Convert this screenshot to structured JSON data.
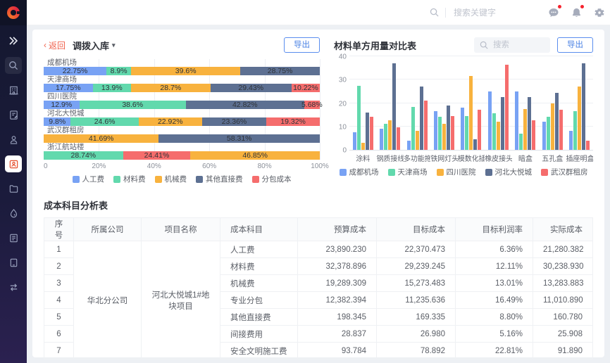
{
  "topbar": {
    "search_placeholder": "搜索关键字",
    "icons": [
      "message-icon",
      "bell-icon",
      "gear-icon"
    ],
    "badge_color": "#F5222D"
  },
  "sidebar": {
    "items": [
      {
        "icon": "expand-sidebar-icon",
        "style": "plain"
      },
      {
        "icon": "search-icon",
        "style": "boxed"
      },
      {
        "icon": "building-icon",
        "style": "plain"
      },
      {
        "icon": "document-edit-icon",
        "style": "plain"
      },
      {
        "icon": "user-certificate-icon",
        "style": "plain"
      },
      {
        "icon": "inventory-module-icon",
        "style": "active"
      },
      {
        "icon": "folder-icon",
        "style": "plain"
      },
      {
        "icon": "droplet-icon",
        "style": "plain"
      },
      {
        "icon": "invoice-icon",
        "style": "plain"
      },
      {
        "icon": "device-icon",
        "style": "plain"
      },
      {
        "icon": "transfer-icon",
        "style": "plain"
      }
    ],
    "active_color": "#E6502F"
  },
  "left_panel": {
    "back_label": "返回",
    "title": "调拨入库",
    "export_label": "导出",
    "chart_data": {
      "type": "bar",
      "orientation": "horizontal-stacked",
      "title": "调拨入库",
      "legend_position": "bottom",
      "grid": true,
      "xlim": [
        0,
        100
      ],
      "x_ticks": [
        "0",
        "20%",
        "40%",
        "60%",
        "80%",
        "100%"
      ],
      "legend": [
        {
          "name": "人工费",
          "color": "#78A2F4"
        },
        {
          "name": "材料费",
          "color": "#62D9AD"
        },
        {
          "name": "机械费",
          "color": "#F8B23E"
        },
        {
          "name": "其他直接费",
          "color": "#5D7092"
        },
        {
          "name": "分包成本",
          "color": "#F56D6D"
        }
      ],
      "rows": [
        {
          "category": "成都机场",
          "segments": [
            {
              "series": 0,
              "value": 22.75,
              "label": "22.75%"
            },
            {
              "series": 1,
              "value": 8.9,
              "label": "8.9%"
            },
            {
              "series": 2,
              "value": 39.6,
              "label": "39.6%"
            },
            {
              "series": 3,
              "value": 28.75,
              "label": "28.75%"
            }
          ]
        },
        {
          "category": "天津商场",
          "segments": [
            {
              "series": 0,
              "value": 17.75,
              "label": "17.75%"
            },
            {
              "series": 1,
              "value": 13.9,
              "label": "13.9%"
            },
            {
              "series": 2,
              "value": 28.7,
              "label": "28.7%"
            },
            {
              "series": 3,
              "value": 29.43,
              "label": "29.43%"
            },
            {
              "series": 4,
              "value": 10.22,
              "label": "10.22%"
            }
          ]
        },
        {
          "category": "四川医院",
          "segments": [
            {
              "series": 0,
              "value": 12.9,
              "label": "12.9%"
            },
            {
              "series": 1,
              "value": 38.6,
              "label": "38.6%"
            },
            {
              "series": 3,
              "value": 42.82,
              "label": "42.82%"
            },
            {
              "series": 4,
              "value": 5.68,
              "label": "5.68%"
            }
          ]
        },
        {
          "category": "河北大悦城",
          "segments": [
            {
              "series": 0,
              "value": 9.8,
              "label": "9.8%"
            },
            {
              "series": 1,
              "value": 24.6,
              "label": "24.6%"
            },
            {
              "series": 2,
              "value": 22.92,
              "label": "22.92%"
            },
            {
              "series": 3,
              "value": 23.36,
              "label": "23.36%"
            },
            {
              "series": 4,
              "value": 19.32,
              "label": "19.32%"
            }
          ]
        },
        {
          "category": "武汉群租房",
          "segments": [
            {
              "series": 2,
              "value": 41.69,
              "label": "41.69%"
            },
            {
              "series": 3,
              "value": 58.31,
              "label": "58.31%"
            }
          ]
        },
        {
          "category": "浙江航站楼",
          "segments": [
            {
              "series": 1,
              "value": 28.74,
              "label": "28.74%"
            },
            {
              "series": 4,
              "value": 24.41,
              "label": "24.41%"
            },
            {
              "series": 2,
              "value": 46.85,
              "label": "46.85%"
            }
          ]
        }
      ]
    }
  },
  "right_panel": {
    "title": "材料单方用量对比表",
    "search_placeholder": "搜索",
    "export_label": "导出",
    "chart_data": {
      "type": "bar",
      "orientation": "vertical-grouped",
      "title": "材料单方用量对比表",
      "legend_position": "bottom",
      "grid": true,
      "ylim": [
        0,
        40
      ],
      "y_ticks": [
        0,
        10,
        20,
        30,
        40
      ],
      "categories": [
        "涂料",
        "钢质接线盒",
        "多功能拖线",
        "铁网灯头",
        "模数化插座",
        "橡皮接头",
        "暗盒",
        "五孔盒",
        "插座明盒"
      ],
      "series": [
        {
          "name": "成都机场",
          "color": "#78A2F4",
          "values": [
            7.5,
            9,
            4,
            16.5,
            18,
            25,
            25,
            12,
            8
          ]
        },
        {
          "name": "天津商场",
          "color": "#62D9AD",
          "values": [
            27.5,
            11,
            18.5,
            14,
            14.5,
            15.5,
            7,
            14,
            16.5
          ]
        },
        {
          "name": "四川医院",
          "color": "#F8B23E",
          "values": [
            3,
            12.5,
            8,
            11,
            31.5,
            12,
            17.5,
            20,
            27
          ]
        },
        {
          "name": "河北大悦城",
          "color": "#5D7092",
          "values": [
            16,
            37,
            27,
            19,
            4.5,
            22.5,
            22.5,
            24.5,
            37
          ]
        },
        {
          "name": "武汉群租房",
          "color": "#F56D6D",
          "values": [
            14,
            9.5,
            21,
            14.5,
            17,
            36.5,
            12.5,
            17,
            4
          ]
        }
      ]
    }
  },
  "table_section": {
    "title": "成本科目分析表",
    "columns": [
      "序号",
      "所属公司",
      "项目名称",
      "成本科目",
      "预算成本",
      "目标成本",
      "目标利润率",
      "实际成本"
    ],
    "company": "华北分公司",
    "project": "河北大悦城1#地块项目",
    "rows": [
      {
        "seq": "1",
        "subject": "人工费",
        "budget": "23,890.230",
        "target": "22,370.473",
        "margin": "6.36%",
        "actual": "21,280.382"
      },
      {
        "seq": "2",
        "subject": "材料费",
        "budget": "32,378.896",
        "target": "29,239.245",
        "margin": "12.11%",
        "actual": "30,238.930"
      },
      {
        "seq": "3",
        "subject": "机械费",
        "budget": "19,289.309",
        "target": "15,273.483",
        "margin": "13.01%",
        "actual": "13,283.883"
      },
      {
        "seq": "4",
        "subject": "专业分包",
        "budget": "12,382.394",
        "target": "11,235.636",
        "margin": "16.49%",
        "actual": "11,010.890"
      },
      {
        "seq": "5",
        "subject": "其他直接费",
        "budget": "198.345",
        "target": "169.335",
        "margin": "8.80%",
        "actual": "160.780"
      },
      {
        "seq": "6",
        "subject": "间接费用",
        "budget": "28.837",
        "target": "26.980",
        "margin": "5.16%",
        "actual": "25.908"
      },
      {
        "seq": "7",
        "subject": "安全文明施工费",
        "budget": "93.784",
        "target": "78.892",
        "margin": "22.81%",
        "actual": "91.890"
      }
    ]
  },
  "colors": {
    "accent_red": "#F0614C",
    "accent_blue": "#4A82E4",
    "sidebar_bg": "#14182F",
    "palette": [
      "#78A2F4",
      "#62D9AD",
      "#F8B23E",
      "#5D7092",
      "#F56D6D"
    ]
  }
}
